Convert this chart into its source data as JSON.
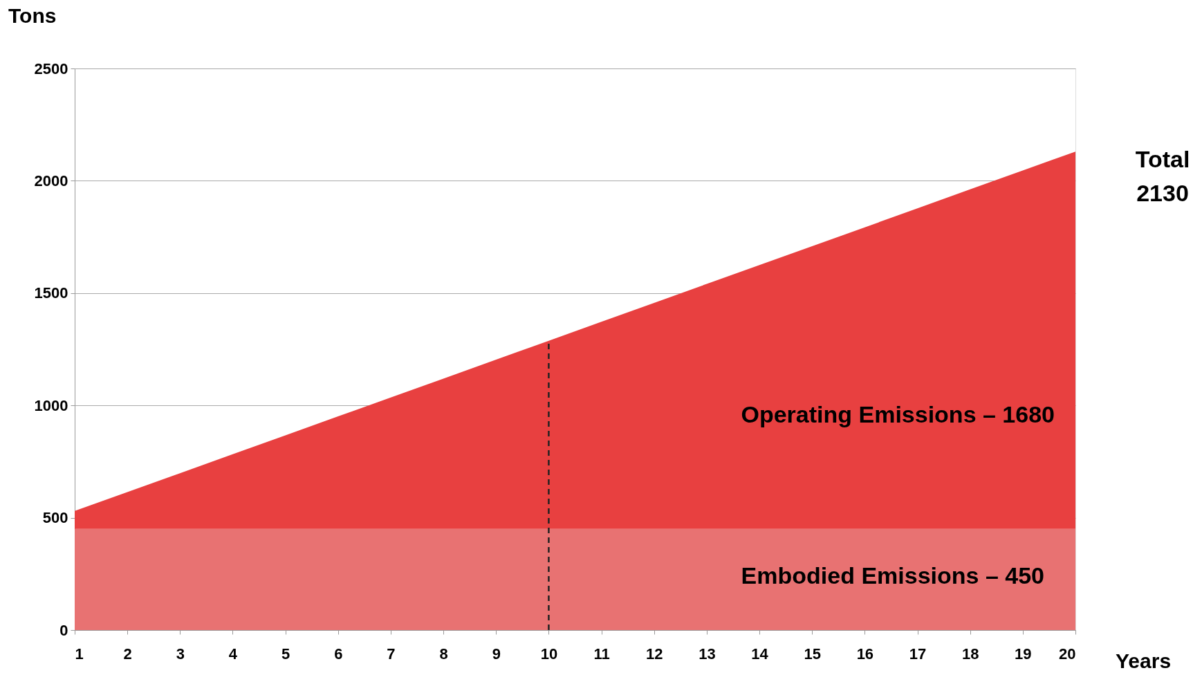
{
  "chart_data": {
    "type": "area",
    "stacked": true,
    "xlabel": "Years",
    "ylabel": "Tons",
    "x": [
      1,
      2,
      3,
      4,
      5,
      6,
      7,
      8,
      9,
      10,
      11,
      12,
      13,
      14,
      15,
      16,
      17,
      18,
      19,
      20
    ],
    "series": [
      {
        "color": "#e87272",
        "values": [
          450,
          450,
          450,
          450,
          450,
          450,
          450,
          450,
          450,
          450,
          450,
          450,
          450,
          450,
          450,
          450,
          450,
          450,
          450,
          450
        ]
      },
      {
        "color": "#e84040",
        "values": [
          80,
          164,
          248,
          333,
          417,
          501,
          585,
          669,
          754,
          838,
          922,
          1006,
          1091,
          1175,
          1259,
          1343,
          1427,
          1512,
          1596,
          1680
        ]
      }
    ],
    "xlim": [
      1,
      20
    ],
    "xticks": [
      1,
      2,
      3,
      4,
      5,
      6,
      7,
      8,
      9,
      10,
      11,
      12,
      13,
      14,
      15,
      16,
      17,
      18,
      19,
      20
    ],
    "ylim": [
      0,
      2500
    ],
    "yticks": [
      0,
      500,
      1000,
      1500,
      2000,
      2500
    ],
    "grid": "y",
    "ref_lines": [
      {
        "axis": "x",
        "value": 10,
        "color": "#222222",
        "line_style": "dashed"
      }
    ],
    "annotations": [
      "Total\n2130",
      "Operating Emissions – 1680",
      "Embodied Emissions – 450"
    ]
  }
}
